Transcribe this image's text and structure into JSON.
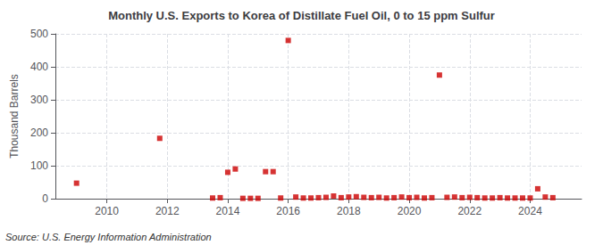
{
  "chart_data": {
    "type": "scatter",
    "title": "Monthly U.S. Exports to Korea of Distillate Fuel Oil, 0 to 15 ppm Sulfur",
    "ylabel": "Thousand Barrels",
    "annotations": [
      "Source: U.S. Energy Information Administration"
    ],
    "color": "#cc0000",
    "marker": "square",
    "grid": true,
    "xlim": [
      2008.3,
      2025.7
    ],
    "xticks": [
      2010,
      2012,
      2014,
      2016,
      2018,
      2020,
      2022,
      2024
    ],
    "ylim": [
      0,
      500
    ],
    "yticks": [
      0,
      100,
      200,
      300,
      400,
      500
    ],
    "x": [
      2009.0,
      2011.75,
      2013.5,
      2013.75,
      2014.0,
      2014.25,
      2014.5,
      2014.75,
      2015.0,
      2015.25,
      2015.5,
      2015.75,
      2016.0,
      2016.25,
      2016.5,
      2016.75,
      2017.0,
      2017.25,
      2017.5,
      2017.75,
      2018.0,
      2018.25,
      2018.5,
      2018.75,
      2019.0,
      2019.25,
      2019.5,
      2019.75,
      2020.0,
      2020.25,
      2020.5,
      2020.75,
      2021.0,
      2021.25,
      2021.5,
      2021.75,
      2022.0,
      2022.25,
      2022.5,
      2022.75,
      2023.0,
      2023.25,
      2023.5,
      2023.75,
      2024.0,
      2024.25,
      2024.5,
      2024.75
    ],
    "values": [
      47,
      183,
      2,
      3,
      80,
      90,
      1,
      1,
      1,
      82,
      82,
      2,
      480,
      5,
      2,
      2,
      3,
      4,
      8,
      3,
      5,
      6,
      4,
      3,
      4,
      2,
      3,
      5,
      3,
      4,
      2,
      3,
      375,
      4,
      5,
      3,
      4,
      3,
      2,
      2,
      3,
      2,
      2,
      2,
      2,
      30,
      5,
      3
    ]
  }
}
